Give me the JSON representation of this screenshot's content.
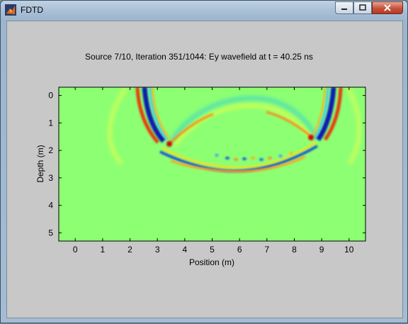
{
  "window": {
    "title": "FDTD",
    "controls": {
      "minimize": "minimize",
      "maximize": "maximize",
      "close": "close"
    }
  },
  "figure": {
    "title": "Source 7/10, Iteration 351/1044:  Ey wavefield at t = 40.25 ns",
    "xlabel": "Position (m)",
    "ylabel": "Depth (m)"
  },
  "colors": {
    "background_field": "#8cff73",
    "window_frame": "#a9c0d6",
    "figure_bg": "#c8c8c8"
  },
  "chart_data": {
    "type": "heatmap",
    "title": "Source 7/10, Iteration 351/1044:  Ey wavefield at t = 40.25 ns",
    "xlabel": "Position (m)",
    "ylabel": "Depth (m)",
    "xlim": [
      -0.6,
      10.6
    ],
    "ylim": [
      -0.3,
      5.3
    ],
    "y_reversed": true,
    "xticks": [
      "0",
      "1",
      "2",
      "3",
      "4",
      "5",
      "6",
      "7",
      "8",
      "9",
      "10"
    ],
    "yticks": [
      "0",
      "1",
      "2",
      "3",
      "4",
      "5"
    ],
    "colormap": "jet"
  }
}
